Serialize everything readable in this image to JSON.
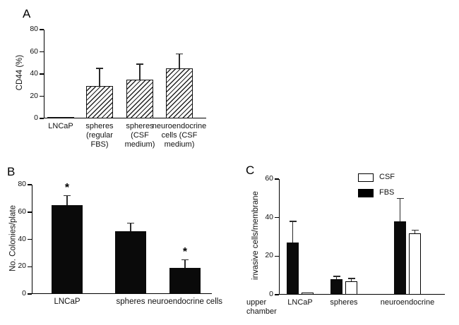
{
  "figure": {
    "background": "#ffffff"
  },
  "panels": [
    {
      "label": "A"
    },
    {
      "label": "B"
    },
    {
      "label": "C"
    }
  ],
  "chart_data": [
    {
      "id": "A",
      "type": "bar",
      "title": "",
      "ylabel": "CD44 (%)",
      "ylim": [
        0,
        80
      ],
      "yticks": [
        0,
        20,
        40,
        60,
        80
      ],
      "categories": [
        "LNCaP",
        "spheres\n(regular\nFBS)",
        "spheres\n(CSF\nmedium)",
        "neuroendocrine\ncells (CSF\nmedium)"
      ],
      "values": [
        1,
        29,
        35,
        45
      ],
      "errors": [
        0,
        16,
        14,
        13
      ],
      "bar_style": "hatched",
      "bar_color": "#111111",
      "grid": false,
      "legend_position": "none"
    },
    {
      "id": "B",
      "type": "bar",
      "title": "",
      "ylabel": "No. Colonies/plate",
      "ylim": [
        0,
        80
      ],
      "yticks": [
        0,
        20,
        40,
        60,
        80
      ],
      "categories": [
        "LNCaP",
        "spheres",
        "neuroendocrine cells"
      ],
      "values": [
        65,
        46,
        19
      ],
      "errors": [
        7,
        6,
        6
      ],
      "annotations": [
        "*",
        "",
        "*"
      ],
      "bar_style": "solid",
      "bar_color": "#0a0a0a",
      "grid": false,
      "legend_position": "none"
    },
    {
      "id": "C",
      "type": "grouped-bar",
      "title": "",
      "ylabel": "invasive cells/membrane",
      "ylim": [
        0,
        60
      ],
      "yticks": [
        0,
        20,
        40,
        60
      ],
      "categories": [
        "LNCaP",
        "spheres",
        "neuroendocrine"
      ],
      "series": [
        {
          "name": "FBS",
          "color": "#0a0a0a",
          "values": [
            27,
            8,
            38
          ],
          "errors": [
            11,
            1.5,
            12
          ]
        },
        {
          "name": "CSF",
          "color": "#ffffff",
          "values": [
            1,
            7,
            32
          ],
          "errors": [
            0,
            1.5,
            1.5
          ]
        }
      ],
      "legend": [
        {
          "label": "CSF",
          "color": "#ffffff"
        },
        {
          "label": "FBS",
          "color": "#000000"
        }
      ],
      "legend_position": "top-right",
      "corner_label": "upper\nchamber",
      "grid": false
    }
  ]
}
